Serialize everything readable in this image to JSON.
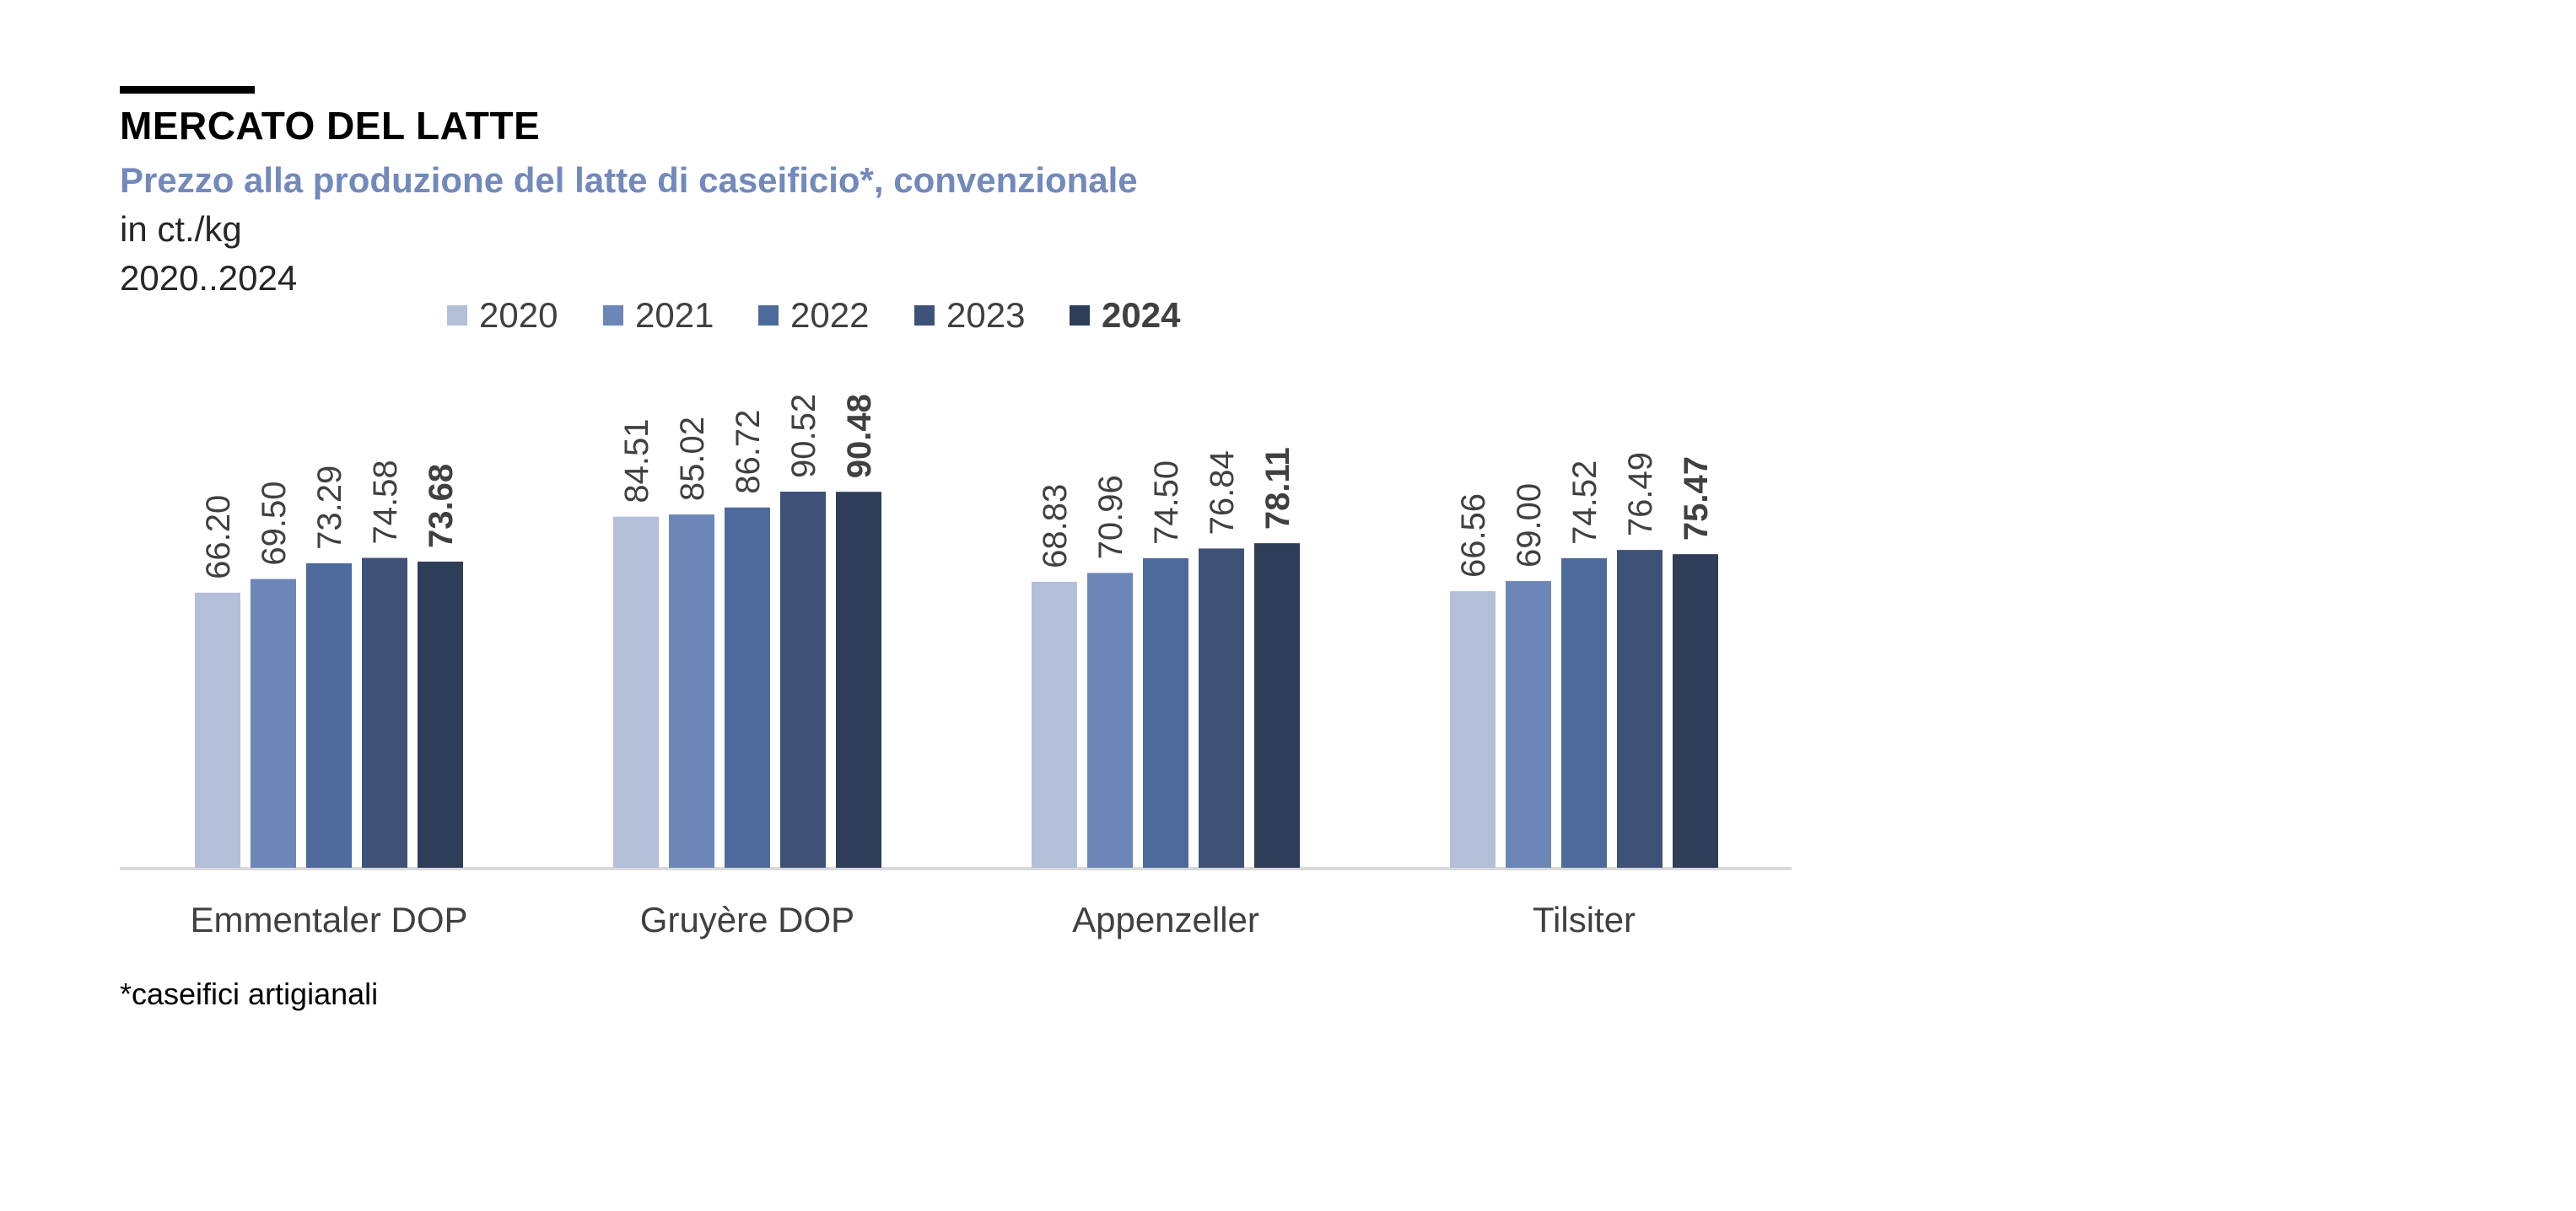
{
  "header": {
    "title": "MERCATO DEL LATTE",
    "subtitle": "Prezzo alla produzione del latte di caseificio*, convenzionale",
    "unit": "in ct./kg",
    "period": "2020..2024"
  },
  "footnote": "*caseifici artigianali",
  "colors": {
    "2020": "#b3bfd9",
    "2021": "#6d86b8",
    "2022": "#4e6a9c",
    "2023": "#3e5278",
    "2024": "#2e3d58",
    "accent": "#000000",
    "subtitle": "#7289bb",
    "axis": "#d9d9d9"
  },
  "chart_data": {
    "type": "bar",
    "categories": [
      "Emmentaler DOP",
      "Gruyère DOP",
      "Appenzeller",
      "Tilsiter"
    ],
    "series": [
      {
        "name": "2020",
        "values": [
          66.2,
          84.51,
          68.83,
          66.56
        ],
        "labels": [
          "66.20",
          "84.51",
          "68.83",
          "66.56"
        ],
        "bold": false
      },
      {
        "name": "2021",
        "values": [
          69.5,
          85.02,
          70.96,
          69.0
        ],
        "labels": [
          "69.50",
          "85.02",
          "70.96",
          "69.00"
        ],
        "bold": false
      },
      {
        "name": "2022",
        "values": [
          73.29,
          86.72,
          74.5,
          74.52
        ],
        "labels": [
          "73.29",
          "86.72",
          "74.50",
          "74.52"
        ],
        "bold": false
      },
      {
        "name": "2023",
        "values": [
          74.58,
          90.52,
          76.84,
          76.49
        ],
        "labels": [
          "74.58",
          "90.52",
          "76.84",
          "76.49"
        ],
        "bold": false
      },
      {
        "name": "2024",
        "values": [
          73.68,
          90.48,
          78.11,
          75.47
        ],
        "labels": [
          "73.68",
          "90.48",
          "78.11",
          "75.47"
        ],
        "bold": true
      }
    ],
    "ylim": [
      0,
      90.52
    ],
    "legend": "top",
    "grid": false
  }
}
